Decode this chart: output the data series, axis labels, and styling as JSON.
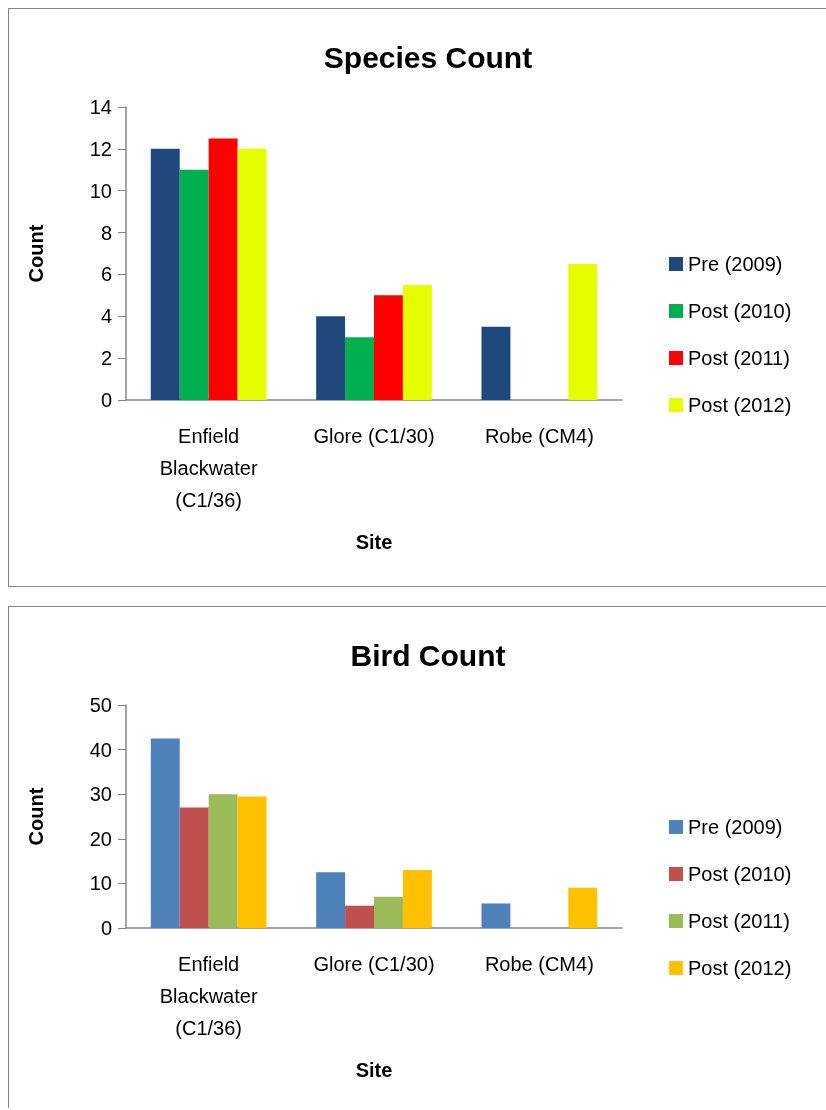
{
  "chart_data": [
    {
      "type": "bar",
      "title": "Species Count",
      "xlabel": "Site",
      "ylabel": "Count",
      "categories": [
        "Enfield Blackwater (C1/36)",
        "Glore (C1/30)",
        "Robe (CM4)"
      ],
      "series": [
        {
          "name": "Pre (2009)",
          "color": "#1f497d",
          "values": [
            12,
            4,
            3.5
          ]
        },
        {
          "name": "Post (2010)",
          "color": "#00b050",
          "values": [
            11,
            3,
            null
          ]
        },
        {
          "name": "Post (2011)",
          "color": "#ff0000",
          "values": [
            12.5,
            5,
            null
          ]
        },
        {
          "name": "Post (2012)",
          "color": "#e6ff00",
          "values": [
            12,
            5.5,
            6.5
          ]
        }
      ],
      "ylim": [
        0,
        14
      ],
      "yticks": [
        0,
        2,
        4,
        6,
        8,
        10,
        12,
        14
      ],
      "grid": false,
      "legend": "right"
    },
    {
      "type": "bar",
      "title": "Bird Count",
      "xlabel": "Site",
      "ylabel": "Count",
      "categories": [
        "Enfield Blackwater (C1/36)",
        "Glore (C1/30)",
        "Robe (CM4)"
      ],
      "series": [
        {
          "name": "Pre (2009)",
          "color": "#4f81bd",
          "values": [
            42.5,
            12.5,
            5.5
          ]
        },
        {
          "name": "Post (2010)",
          "color": "#c0504d",
          "values": [
            27,
            5,
            null
          ]
        },
        {
          "name": "Post (2011)",
          "color": "#9bbb59",
          "values": [
            30,
            7,
            null
          ]
        },
        {
          "name": "Post (2012)",
          "color": "#ffc000",
          "values": [
            29.5,
            13,
            9
          ]
        }
      ],
      "ylim": [
        0,
        50
      ],
      "yticks": [
        0,
        10,
        20,
        30,
        40,
        50
      ],
      "grid": false,
      "legend": "right"
    }
  ]
}
